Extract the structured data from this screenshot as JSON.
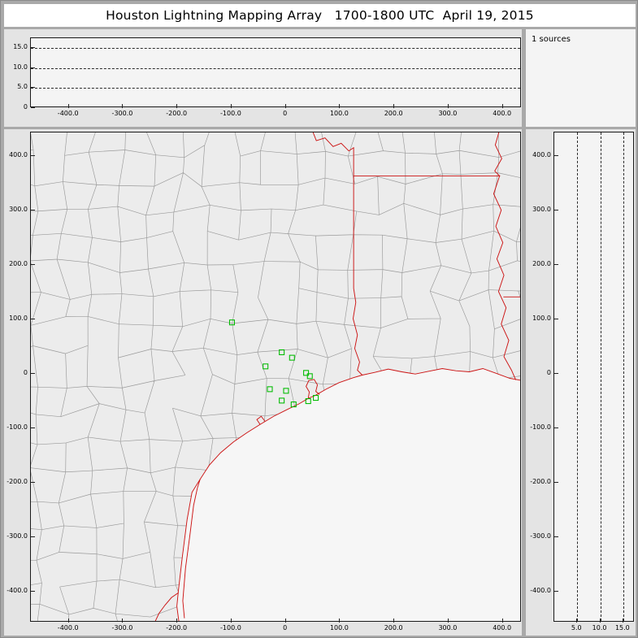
{
  "window": {
    "title": "Houston Lightning Mapping Array   1700-1800 UTC  April 19, 2015"
  },
  "colors": {
    "state_border_red": "#cc1111",
    "county_gray": "#9a9a9a",
    "station_green": "#00bb00",
    "dashed_grid": "#2a2a2a"
  },
  "chart_data": [
    {
      "panel": "altitude-vs-eastwest",
      "type": "scatter",
      "points": [],
      "xlim": [
        -470,
        435
      ],
      "ylim": [
        0,
        17.5
      ],
      "x_tick_labels": [
        "-400.0",
        "-300.0",
        "-200.0",
        "-100.0",
        "0",
        "100.0",
        "200.0",
        "300.0",
        "400.0"
      ],
      "x_tick_values": [
        -400,
        -300,
        -200,
        -100,
        0,
        100,
        200,
        300,
        400
      ],
      "y_tick_labels": [
        "15.0",
        "10.0",
        "5.0",
        "0"
      ],
      "y_tick_values": [
        15,
        10,
        5,
        0
      ],
      "gridlines_y": [
        5,
        10,
        15
      ],
      "grid_style": "dashed",
      "grid": true,
      "legend": "none"
    },
    {
      "panel": "source-count",
      "type": "text",
      "label": "1 sources"
    },
    {
      "panel": "plan-view-map",
      "type": "scatter",
      "xlim": [
        -470,
        435
      ],
      "ylim": [
        -457,
        443
      ],
      "x_tick_labels": [
        "-400.0",
        "-300.0",
        "-200.0",
        "-100.0",
        "0",
        "100.0",
        "200.0",
        "300.0",
        "400.0"
      ],
      "x_tick_values": [
        -400,
        -300,
        -200,
        -100,
        0,
        100,
        200,
        300,
        400
      ],
      "y_tick_labels": [
        "400.0",
        "300.0",
        "200.0",
        "100.0",
        "0",
        "-100.0",
        "-200.0",
        "-300.0",
        "-400.0"
      ],
      "y_tick_values": [
        400,
        300,
        200,
        100,
        0,
        -100,
        -200,
        -300,
        -400
      ],
      "stations": [
        [
          -98,
          93
        ],
        [
          -6,
          38
        ],
        [
          13,
          28
        ],
        [
          -36,
          12
        ],
        [
          39,
          0
        ],
        [
          46,
          -6
        ],
        [
          -28,
          -30
        ],
        [
          2,
          -33
        ],
        [
          -6,
          -51
        ],
        [
          16,
          -58
        ],
        [
          43,
          -52
        ],
        [
          57,
          -46
        ]
      ],
      "map_features": [
        "county-boundaries",
        "state-borders",
        "coastline",
        "rivers",
        "gulf-of-mexico"
      ],
      "grid": false,
      "legend": "none"
    },
    {
      "panel": "altitude-vs-northsouth",
      "type": "scatter",
      "points": [],
      "xlim": [
        0,
        17.5
      ],
      "ylim": [
        -457,
        443
      ],
      "x_tick_labels": [
        "5.0",
        "10.0",
        "15.0"
      ],
      "x_tick_values": [
        5,
        10,
        15
      ],
      "y_tick_labels": [
        "400.0",
        "300.0",
        "200.0",
        "100.0",
        "0",
        "-100.0",
        "-200.0",
        "-300.0",
        "-400.0"
      ],
      "y_tick_values": [
        400,
        300,
        200,
        100,
        0,
        -100,
        -200,
        -300,
        -400
      ],
      "gridlines_x": [
        5,
        10,
        15
      ],
      "grid_style": "dashed",
      "grid": true,
      "legend": "none"
    }
  ]
}
